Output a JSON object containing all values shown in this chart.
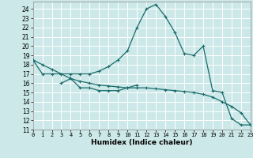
{
  "title": "",
  "xlabel": "Humidex (Indice chaleur)",
  "ylabel": "",
  "bg_color": "#cce8e8",
  "grid_color": "#ffffff",
  "line_color": "#1a6b6b",
  "line1_x": [
    0,
    1,
    2,
    3,
    4,
    5,
    6,
    7,
    8,
    9,
    10,
    11,
    12,
    13,
    14,
    15,
    16,
    17,
    18,
    19,
    20,
    21,
    22,
    23
  ],
  "line1_y": [
    18.5,
    17.0,
    17.0,
    17.0,
    17.0,
    17.0,
    17.0,
    17.3,
    17.8,
    18.5,
    19.5,
    22.0,
    24.0,
    24.5,
    23.2,
    21.5,
    19.2,
    19.0,
    20.0,
    15.2,
    15.0,
    12.2,
    11.5,
    11.5
  ],
  "line2_x": [
    3,
    4,
    5,
    6,
    7,
    8,
    9,
    10,
    11
  ],
  "line2_y": [
    16.0,
    16.5,
    15.5,
    15.5,
    15.2,
    15.2,
    15.2,
    15.5,
    15.8
  ],
  "line3_x": [
    0,
    1,
    2,
    3,
    4,
    5,
    6,
    7,
    8,
    9,
    10,
    11,
    12,
    13,
    14,
    15,
    16,
    17,
    18,
    19,
    20,
    21,
    22,
    23
  ],
  "line3_y": [
    18.5,
    18.0,
    17.5,
    17.0,
    16.5,
    16.2,
    16.0,
    15.8,
    15.7,
    15.6,
    15.5,
    15.5,
    15.5,
    15.4,
    15.3,
    15.2,
    15.1,
    15.0,
    14.8,
    14.5,
    14.0,
    13.5,
    12.8,
    11.5
  ],
  "xlim": [
    0,
    23
  ],
  "ylim": [
    11,
    24.8
  ],
  "yticks": [
    11,
    12,
    13,
    14,
    15,
    16,
    17,
    18,
    19,
    20,
    21,
    22,
    23,
    24
  ],
  "xticks": [
    0,
    1,
    2,
    3,
    4,
    5,
    6,
    7,
    8,
    9,
    10,
    11,
    12,
    13,
    14,
    15,
    16,
    17,
    18,
    19,
    20,
    21,
    22,
    23
  ]
}
